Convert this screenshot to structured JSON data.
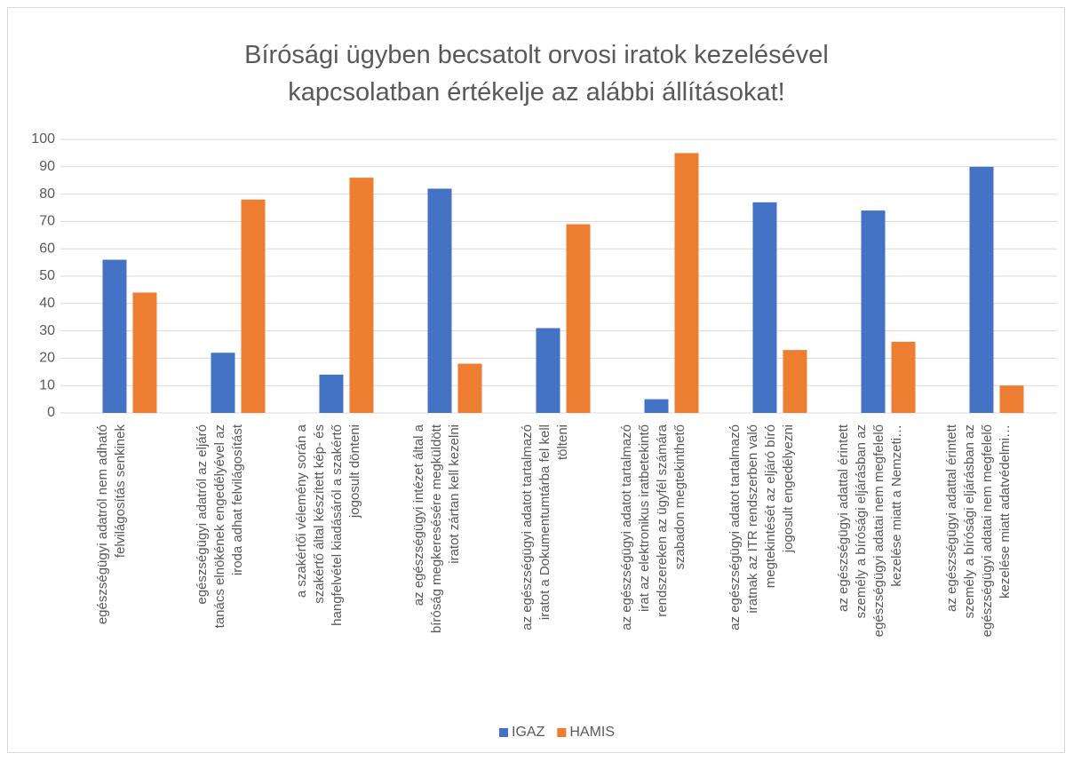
{
  "chart_data": {
    "type": "bar",
    "title": "Bírósági ügyben becsatolt orvosi iratok kezelésével\nkapcsolatban értékelje az alábbi állításokat!",
    "categories": [
      "egészségügyi adatról nem adható\nfelvilágosítás senkinek",
      "egészségügyi adatról az eljáró\ntanács elnökének engedélyével az\niroda adhat felvilágosítást",
      "a szakértői vélemény során a\nszakértő által készített kép- és\nhangfelvétel kiadásáról a szakértő\njogosult dönteni",
      "az egészségügyi intézet által a\nbíróság megkeresésére megküldött\niratot zártan kell kezelni",
      "az egészségügyi adatot tartalmazó\niratot a Dokumentumtárba fel kell\ntölteni",
      "az egészségügyi adatot tartalmazó\nirat az elektronikus iratbetekintő\nrendszereken az ügyfél számára\nszabadon megtekinthető",
      "az egészségügyi adatot tartalmazó\niratnak az ITR rendszerben való\nmegtekintését az eljáró bíró\njogosult engedélyezni",
      "az egészségügyi adattal érintett\nszemély a bírósági eljárásban az\negészségügyi adatai nem megfelelő\nkezelése miatt a Nemzeti…",
      "az egészségügyi adattal érintett\nszemély a bírósági eljárásban az\negészségügyi adatai nem megfelelő\nkezelése miatt adatvédelmi…"
    ],
    "series": [
      {
        "name": "IGAZ",
        "color": "#4472c4",
        "values": [
          56,
          22,
          14,
          82,
          31,
          5,
          77,
          74,
          90
        ]
      },
      {
        "name": "HAMIS",
        "color": "#ed7d31",
        "values": [
          44,
          78,
          86,
          18,
          69,
          95,
          23,
          26,
          10
        ]
      }
    ],
    "ylim": [
      0,
      100
    ],
    "yticks": [
      0,
      10,
      20,
      30,
      40,
      50,
      60,
      70,
      80,
      90,
      100
    ],
    "grid": true,
    "legend": "bottom"
  }
}
